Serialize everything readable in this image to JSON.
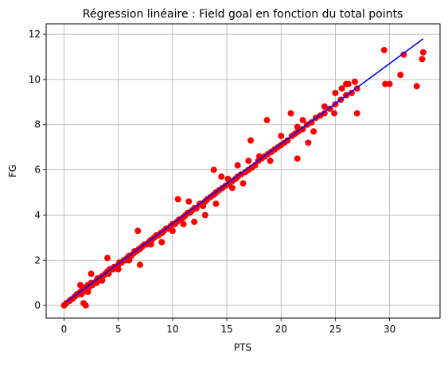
{
  "chart_data": {
    "type": "scatter",
    "title": "Régression linéaire : Field goal en fonction du total points",
    "xlabel": "PTS",
    "ylabel": "FG",
    "xlim": [
      -1.65,
      34.65
    ],
    "ylim": [
      -0.56,
      12.46
    ],
    "xticks": [
      0,
      5,
      10,
      15,
      20,
      25,
      30
    ],
    "yticks": [
      0,
      2,
      4,
      6,
      8,
      10,
      12
    ],
    "grid": true,
    "legend": "none",
    "colors": {
      "points": "#ff0000",
      "line": "#0000ff",
      "grid": "#b0b0b0"
    },
    "regression_line": {
      "x": [
        0.2,
        33.1
      ],
      "y": [
        0.15,
        11.8
      ]
    },
    "series": [
      {
        "kind": "scatter",
        "x": [
          0,
          0.2,
          0.5,
          0.6,
          0.8,
          1.0,
          1.2,
          1.4,
          1.5,
          1.6,
          1.7,
          1.8,
          1.9,
          2.0,
          2.0,
          2.1,
          2.2,
          2.3,
          2.5,
          2.6,
          2.8,
          3.0,
          3.1,
          3.3,
          3.5,
          3.6,
          3.8,
          4.0,
          4.1,
          4.2,
          4.4,
          4.6,
          4.8,
          5.0,
          5.1,
          5.3,
          5.5,
          5.7,
          5.8,
          6.0,
          6.2,
          6.4,
          6.5,
          6.7,
          6.9,
          7.0,
          7.2,
          7.4,
          7.6,
          7.8,
          8.0,
          8.1,
          8.3,
          8.5,
          8.7,
          8.9,
          9.0,
          9.2,
          9.4,
          9.6,
          9.8,
          10.0,
          10.2,
          10.4,
          10.6,
          10.8,
          11.0,
          11.2,
          11.4,
          11.6,
          11.8,
          12.0,
          12.2,
          12.5,
          12.7,
          13.0,
          13.2,
          13.5,
          13.8,
          14.0,
          14.3,
          14.6,
          14.9,
          15.2,
          15.5,
          15.8,
          16.0,
          16.3,
          16.7,
          17.0,
          17.3,
          17.6,
          17.9,
          18.2,
          18.5,
          18.8,
          19.1,
          19.4,
          19.7,
          20.0,
          20.3,
          20.6,
          21.0,
          21.3,
          21.6,
          22.0,
          22.4,
          22.8,
          23.2,
          23.6,
          24.0,
          24.5,
          25.0,
          25.5,
          26.0,
          26.5,
          27.0,
          4.0,
          6.8,
          10.5,
          13.8,
          15.1,
          18.7,
          20.9,
          21.5,
          24.9,
          25.0,
          26.0,
          26.8,
          27.0,
          29.5,
          29.6,
          30.0,
          31.0,
          31.3,
          32.5,
          33.0,
          33.1,
          1.8,
          1.5,
          2.5,
          3.5,
          5.0,
          7.0,
          9.0,
          11.0,
          12.0,
          13.0,
          14.0,
          16.5,
          17.0,
          19.0,
          22.5,
          23.0,
          16.0,
          17.2,
          21.5,
          15.5,
          12.8,
          10.0,
          8.0,
          6.0,
          4.5,
          3.0,
          2.2,
          11.5,
          14.5,
          18.0,
          20.0,
          22.0,
          24.0,
          25.6,
          26.2
        ],
        "y": [
          0,
          0.1,
          0.2,
          0.25,
          0.3,
          0.4,
          0.5,
          0.5,
          0.6,
          0.5,
          0.7,
          0.6,
          0.7,
          0.8,
          0,
          0.8,
          0.9,
          0.8,
          1.0,
          0.9,
          1.0,
          1.1,
          1.2,
          1.2,
          1.3,
          1.3,
          1.4,
          1.5,
          1.4,
          1.6,
          1.6,
          1.7,
          1.7,
          1.8,
          1.9,
          1.9,
          2.0,
          2.0,
          2.1,
          2.2,
          2.2,
          2.3,
          2.4,
          2.4,
          2.5,
          2.5,
          2.6,
          2.7,
          2.7,
          2.8,
          2.9,
          2.9,
          3.0,
          3.1,
          3.1,
          3.2,
          3.2,
          3.3,
          3.4,
          3.4,
          3.5,
          3.6,
          3.6,
          3.7,
          3.8,
          3.8,
          3.9,
          4.0,
          4.1,
          4.1,
          4.2,
          4.3,
          4.3,
          4.5,
          4.5,
          4.6,
          4.7,
          4.8,
          4.9,
          5.0,
          5.1,
          5.2,
          5.3,
          5.4,
          5.5,
          5.6,
          5.7,
          5.8,
          5.9,
          6.0,
          6.1,
          6.2,
          6.4,
          6.5,
          6.6,
          6.7,
          6.8,
          6.9,
          7.0,
          7.1,
          7.2,
          7.3,
          7.5,
          7.6,
          7.7,
          7.8,
          8.0,
          8.1,
          8.3,
          8.4,
          8.5,
          8.7,
          8.9,
          9.1,
          9.3,
          9.4,
          9.6,
          2.1,
          3.3,
          4.7,
          6.0,
          5.6,
          8.2,
          8.5,
          6.5,
          8.5,
          9.4,
          9.8,
          9.9,
          8.5,
          11.3,
          9.8,
          9.8,
          10.2,
          11.1,
          9.7,
          10.9,
          11.2,
          0.1,
          0.9,
          1.4,
          1.1,
          1.6,
          1.8,
          2.8,
          3.6,
          3.7,
          4.0,
          4.5,
          5.4,
          6.4,
          6.4,
          7.2,
          7.7,
          6.2,
          7.3,
          7.9,
          5.2,
          4.4,
          3.3,
          2.7,
          2.0,
          1.6,
          1.0,
          0.6,
          4.6,
          5.7,
          6.6,
          7.5,
          8.2,
          8.8,
          9.6,
          9.8
        ]
      }
    ]
  }
}
